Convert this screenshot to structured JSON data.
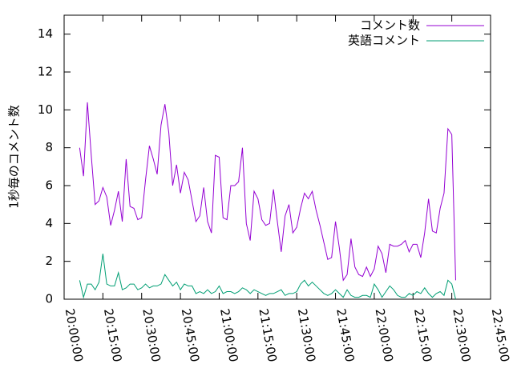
{
  "chart_data": {
    "type": "line",
    "ylabel": "1秒毎のコメント数",
    "x": [
      "20:06:00",
      "20:07:30",
      "20:09:00",
      "20:10:30",
      "20:12:00",
      "20:13:30",
      "20:15:00",
      "20:16:30",
      "20:18:00",
      "20:19:30",
      "20:21:00",
      "20:22:30",
      "20:24:00",
      "20:25:30",
      "20:27:00",
      "20:28:30",
      "20:30:00",
      "20:31:30",
      "20:33:00",
      "20:34:30",
      "20:36:00",
      "20:37:30",
      "20:39:00",
      "20:40:30",
      "20:42:00",
      "20:43:30",
      "20:45:00",
      "20:46:30",
      "20:48:00",
      "20:49:30",
      "20:51:00",
      "20:52:30",
      "20:54:00",
      "20:55:30",
      "20:57:00",
      "20:58:30",
      "21:00:00",
      "21:01:30",
      "21:03:00",
      "21:04:30",
      "21:06:00",
      "21:07:30",
      "21:09:00",
      "21:10:30",
      "21:12:00",
      "21:13:30",
      "21:15:00",
      "21:16:30",
      "21:18:00",
      "21:19:30",
      "21:21:00",
      "21:22:30",
      "21:24:00",
      "21:25:30",
      "21:27:00",
      "21:28:30",
      "21:30:00",
      "21:31:30",
      "21:33:00",
      "21:34:30",
      "21:36:00",
      "21:37:30",
      "21:39:00",
      "21:40:30",
      "21:42:00",
      "21:43:30",
      "21:45:00",
      "21:46:30",
      "21:48:00",
      "21:49:30",
      "21:51:00",
      "21:52:30",
      "21:54:00",
      "21:55:30",
      "21:57:00",
      "21:58:30",
      "22:00:00",
      "22:01:30",
      "22:03:00",
      "22:04:30",
      "22:06:00",
      "22:07:30",
      "22:09:00",
      "22:10:30",
      "22:12:00",
      "22:13:30",
      "22:15:00",
      "22:16:30",
      "22:18:00",
      "22:19:30",
      "22:21:00",
      "22:22:30",
      "22:24:00",
      "22:25:30",
      "22:27:00",
      "22:28:30",
      "22:30:00",
      "22:31:30"
    ],
    "series": [
      {
        "name": "コメント数",
        "color": "#9400d3",
        "values": [
          8.0,
          6.5,
          10.4,
          7.6,
          5.0,
          5.2,
          5.9,
          5.4,
          3.9,
          4.7,
          5.7,
          4.1,
          7.4,
          4.9,
          4.8,
          4.2,
          4.3,
          6.3,
          8.1,
          7.4,
          6.6,
          9.2,
          10.3,
          8.8,
          6.0,
          7.1,
          5.6,
          6.7,
          6.3,
          5.2,
          4.1,
          4.4,
          5.9,
          4.1,
          3.5,
          7.6,
          7.5,
          4.3,
          4.2,
          6.0,
          6.0,
          6.2,
          8.0,
          4.0,
          3.1,
          5.7,
          5.3,
          4.2,
          3.9,
          4.0,
          5.8,
          4.1,
          2.5,
          4.4,
          5.0,
          3.5,
          3.8,
          4.8,
          5.6,
          5.3,
          5.7,
          4.7,
          3.9,
          3.0,
          2.1,
          2.2,
          4.1,
          2.7,
          1.0,
          1.3,
          3.2,
          1.7,
          1.3,
          1.2,
          1.7,
          1.2,
          1.6,
          2.8,
          2.4,
          1.4,
          2.9,
          2.8,
          2.8,
          2.9,
          3.1,
          2.5,
          2.9,
          2.9,
          2.2,
          3.5,
          5.3,
          3.6,
          3.5,
          4.8,
          5.6,
          9.0,
          8.7,
          1.0
        ]
      },
      {
        "name": "英語コメント",
        "color": "#009e73",
        "values": [
          1.0,
          0.1,
          0.8,
          0.8,
          0.5,
          0.9,
          2.4,
          0.8,
          0.7,
          0.7,
          1.4,
          0.5,
          0.6,
          0.8,
          0.8,
          0.5,
          0.6,
          0.8,
          0.6,
          0.7,
          0.7,
          0.8,
          1.3,
          1.0,
          0.7,
          0.9,
          0.5,
          0.8,
          0.7,
          0.7,
          0.3,
          0.4,
          0.3,
          0.5,
          0.3,
          0.4,
          0.7,
          0.3,
          0.4,
          0.4,
          0.3,
          0.4,
          0.6,
          0.5,
          0.3,
          0.5,
          0.4,
          0.3,
          0.2,
          0.3,
          0.3,
          0.4,
          0.5,
          0.2,
          0.3,
          0.3,
          0.4,
          0.8,
          1.0,
          0.7,
          0.9,
          0.7,
          0.5,
          0.3,
          0.2,
          0.3,
          0.5,
          0.3,
          0.1,
          0.5,
          0.2,
          0.1,
          0.1,
          0.2,
          0.2,
          0.1,
          0.8,
          0.5,
          0.1,
          0.4,
          0.7,
          0.5,
          0.2,
          0.1,
          0.1,
          0.3,
          0.2,
          0.4,
          0.3,
          0.6,
          0.3,
          0.1,
          0.3,
          0.4,
          0.2,
          1.0,
          0.8,
          0.0
        ]
      }
    ],
    "xlim": [
      "20:00:00",
      "22:45:00"
    ],
    "xticks": [
      "20:00:00",
      "20:15:00",
      "20:30:00",
      "20:45:00",
      "21:00:00",
      "21:15:00",
      "21:30:00",
      "21:45:00",
      "22:00:00",
      "22:15:00",
      "22:30:00",
      "22:45:00"
    ],
    "ylim": [
      0,
      15
    ],
    "yticks": [
      0,
      2,
      4,
      6,
      8,
      10,
      12,
      14
    ],
    "legend": "top-right"
  }
}
